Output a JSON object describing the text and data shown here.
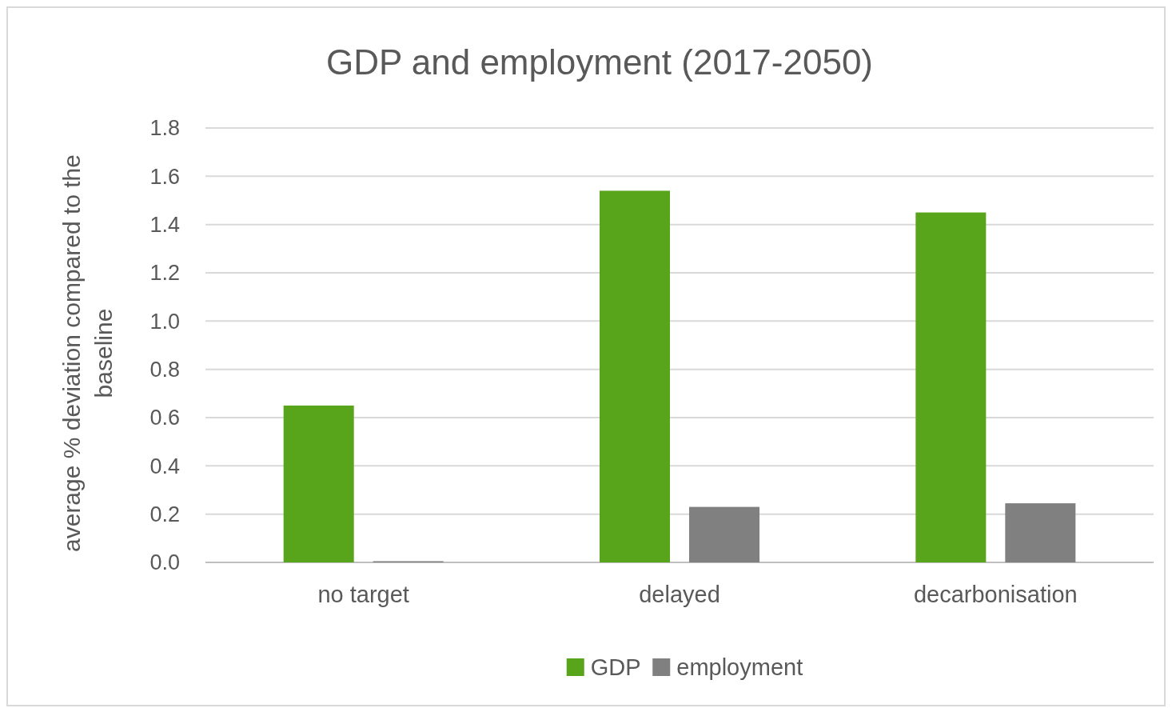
{
  "chart_data": {
    "type": "bar",
    "title": "GDP and employment (2017-2050)",
    "ylabel": "average % deviation  compared to the baseline",
    "categories": [
      "no target",
      "delayed",
      "decarbonisation"
    ],
    "series": [
      {
        "name": "GDP",
        "color": "#58a51b",
        "values": [
          0.65,
          1.54,
          1.45
        ]
      },
      {
        "name": "employment",
        "color": "#808080",
        "values": [
          0.005,
          0.23,
          0.245
        ]
      }
    ],
    "ylim": [
      0,
      1.8
    ],
    "yticks": [
      {
        "value": 0,
        "label": "0.0"
      },
      {
        "value": 0.2,
        "label": "0.2"
      },
      {
        "value": 0.4,
        "label": "0.4"
      },
      {
        "value": 0.6,
        "label": "0.6"
      },
      {
        "value": 0.8,
        "label": "0.8"
      },
      {
        "value": 1,
        "label": "1.0"
      },
      {
        "value": 1.2,
        "label": "1.2"
      },
      {
        "value": 1.4,
        "label": "1.4"
      },
      {
        "value": 1.6,
        "label": "1.6"
      },
      {
        "value": 1.8,
        "label": "1.8"
      }
    ],
    "grid": "y",
    "legend": "bottom"
  }
}
